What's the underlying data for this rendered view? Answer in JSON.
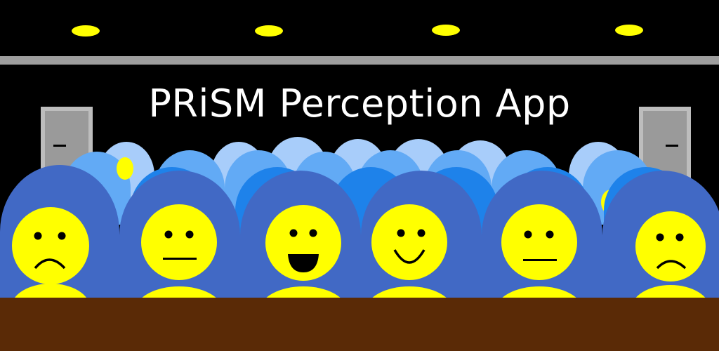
{
  "app": {
    "title": "PRiSM Perception App"
  },
  "scene": {
    "ceiling_lights": 4,
    "doors": [
      "left-door",
      "right-door"
    ],
    "front_row_faces": [
      {
        "name": "face-sad-left",
        "expression": "sad"
      },
      {
        "name": "face-neutral-left",
        "expression": "neutral"
      },
      {
        "name": "face-laughing",
        "expression": "laughing"
      },
      {
        "name": "face-smiling",
        "expression": "smiling"
      },
      {
        "name": "face-neutral-right",
        "expression": "neutral"
      },
      {
        "name": "face-sad-right",
        "expression": "sad"
      }
    ]
  },
  "colors": {
    "background": "#000000",
    "ceiling_strip": "#9e9e9e",
    "light": "#ffff00",
    "door": "#a8a8a8",
    "seat_front": "#4169c5",
    "seat_mid": "#1e7ee8",
    "seat_back": "#3d97f0",
    "seat_far": "#a8cdfa",
    "face": "#ffff00",
    "stage_floor": "#5a2a06"
  }
}
